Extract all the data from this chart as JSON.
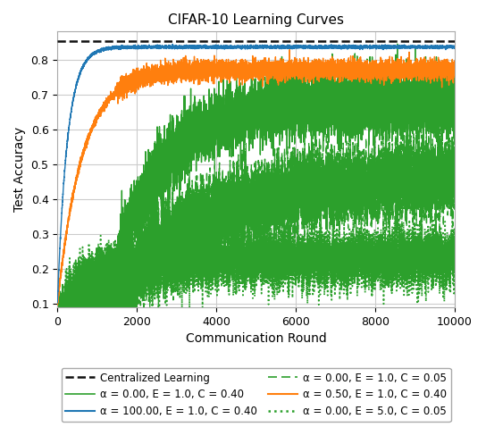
{
  "title": "CIFAR-10 Learning Curves",
  "xlabel": "Communication Round",
  "ylabel": "Test Accuracy",
  "xlim": [
    0,
    10000
  ],
  "ylim": [
    0.09,
    0.88
  ],
  "yticks": [
    0.1,
    0.2,
    0.3,
    0.4,
    0.5,
    0.6,
    0.7,
    0.8
  ],
  "xticks": [
    0,
    2000,
    4000,
    6000,
    8000,
    10000
  ],
  "centralized_value": 0.853,
  "figsize": [
    5.44,
    4.78
  ],
  "dpi": 100,
  "legend_labels": [
    "Centralized Learning",
    "α = 100.00, E = 1.0, C = 0.40",
    "α = 0.50, E = 1.0, C = 0.40",
    "α = 0.00, E = 1.0, C = 0.40",
    "α = 0.00, E = 1.0, C = 0.05",
    "α = 0.00, E = 5.0, C = 0.05"
  ],
  "colors": {
    "centralized": "#111111",
    "blue": "#1f77b4",
    "orange": "#ff7f0e",
    "green": "#2ca02c"
  },
  "random_seed": 42,
  "n_rounds": 10000
}
